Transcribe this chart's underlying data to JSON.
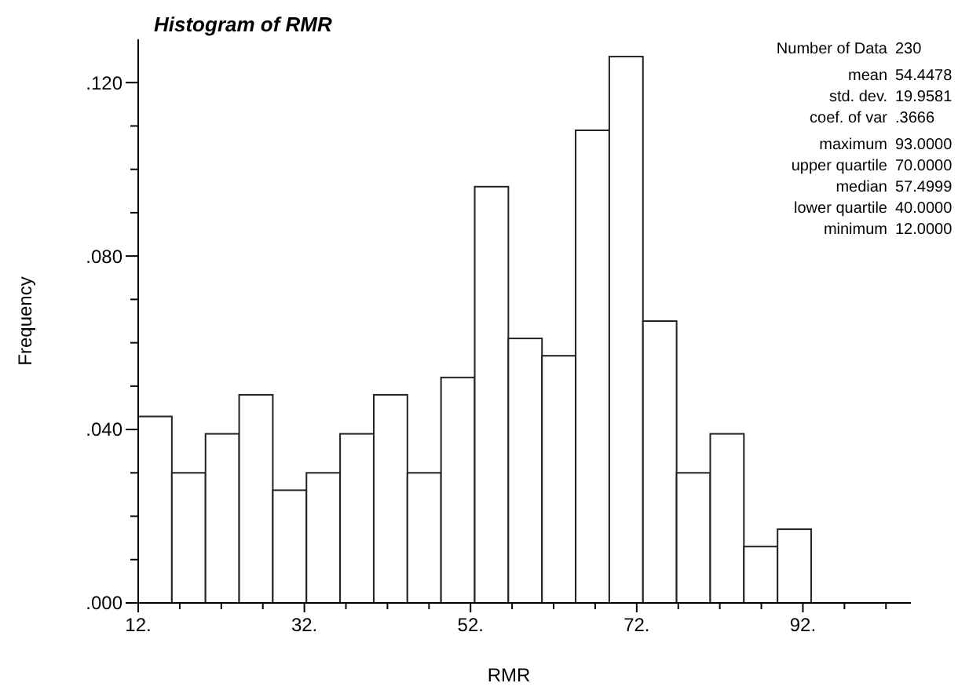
{
  "chart_data": {
    "type": "histogram",
    "title": "Histogram of RMR",
    "xlabel": "RMR",
    "ylabel": "Frequency",
    "bins": [
      12,
      16.05,
      20.1,
      24.15,
      28.2,
      32.25,
      36.3,
      40.35,
      44.4,
      48.45,
      52.5,
      56.55,
      60.6,
      64.65,
      68.7,
      72.75,
      76.8,
      80.85,
      84.9,
      88.95,
      93
    ],
    "values": [
      0.043,
      0.03,
      0.039,
      0.048,
      0.026,
      0.03,
      0.039,
      0.048,
      0.03,
      0.052,
      0.096,
      0.061,
      0.057,
      0.109,
      0.126,
      0.065,
      0.03,
      0.039,
      0.013,
      0.017
    ],
    "color": "#ffffff",
    "xlim": [
      12,
      105
    ],
    "xticks": [
      {
        "value": 12,
        "label": "12."
      },
      {
        "value": 17,
        "label": null
      },
      {
        "value": 22,
        "label": null
      },
      {
        "value": 27,
        "label": null
      },
      {
        "value": 32,
        "label": "32."
      },
      {
        "value": 37,
        "label": null
      },
      {
        "value": 42,
        "label": null
      },
      {
        "value": 47,
        "label": null
      },
      {
        "value": 52,
        "label": "52."
      },
      {
        "value": 57,
        "label": null
      },
      {
        "value": 62,
        "label": null
      },
      {
        "value": 67,
        "label": null
      },
      {
        "value": 72,
        "label": "72."
      },
      {
        "value": 77,
        "label": null
      },
      {
        "value": 82,
        "label": null
      },
      {
        "value": 87,
        "label": null
      },
      {
        "value": 92,
        "label": "92."
      },
      {
        "value": 97,
        "label": null
      },
      {
        "value": 102,
        "label": null
      }
    ],
    "ylim": [
      0,
      0.13
    ],
    "yticks": [
      {
        "value": 0,
        "label": ".000"
      },
      {
        "value": 0.01,
        "label": null
      },
      {
        "value": 0.02,
        "label": null
      },
      {
        "value": 0.03,
        "label": null
      },
      {
        "value": 0.04,
        "label": ".040"
      },
      {
        "value": 0.05,
        "label": null
      },
      {
        "value": 0.06,
        "label": null
      },
      {
        "value": 0.07,
        "label": null
      },
      {
        "value": 0.08,
        "label": ".080"
      },
      {
        "value": 0.09,
        "label": null
      },
      {
        "value": 0.1,
        "label": null
      },
      {
        "value": 0.11,
        "label": null
      },
      {
        "value": 0.12,
        "label": ".120"
      }
    ],
    "annotations": [
      "Number of Data 230",
      "mean 54.4478",
      "std. dev. 19.9581",
      "coef. of var .3666",
      "maximum 93.0000",
      "upper quartile 70.0000",
      "median 57.4999",
      "lower quartile 40.0000",
      "minimum 12.0000"
    ],
    "grid": false
  }
}
